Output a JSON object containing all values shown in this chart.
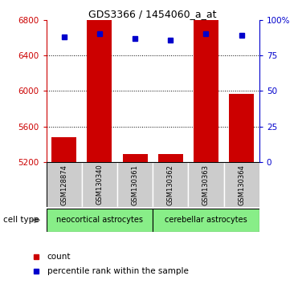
{
  "title": "GDS3366 / 1454060_a_at",
  "samples": [
    "GSM128874",
    "GSM130340",
    "GSM130361",
    "GSM130362",
    "GSM130363",
    "GSM130364"
  ],
  "counts": [
    5480,
    6820,
    5290,
    5290,
    6820,
    5970
  ],
  "percentiles": [
    88,
    90,
    87,
    86,
    90,
    89
  ],
  "ylim_left": [
    5200,
    6800
  ],
  "ylim_right": [
    0,
    100
  ],
  "yticks_left": [
    5200,
    5600,
    6000,
    6400,
    6800
  ],
  "yticks_right": [
    0,
    25,
    50,
    75,
    100
  ],
  "bar_color": "#cc0000",
  "dot_color": "#0000cc",
  "group1_label": "neocortical astrocytes",
  "group2_label": "cerebellar astrocytes",
  "group_color": "#88ee88",
  "cell_type_label": "cell type",
  "legend_count_label": "count",
  "legend_pct_label": "percentile rank within the sample",
  "left_axis_color": "#cc0000",
  "right_axis_color": "#0000cc",
  "sample_box_color": "#cccccc",
  "background_color": "#ffffff"
}
